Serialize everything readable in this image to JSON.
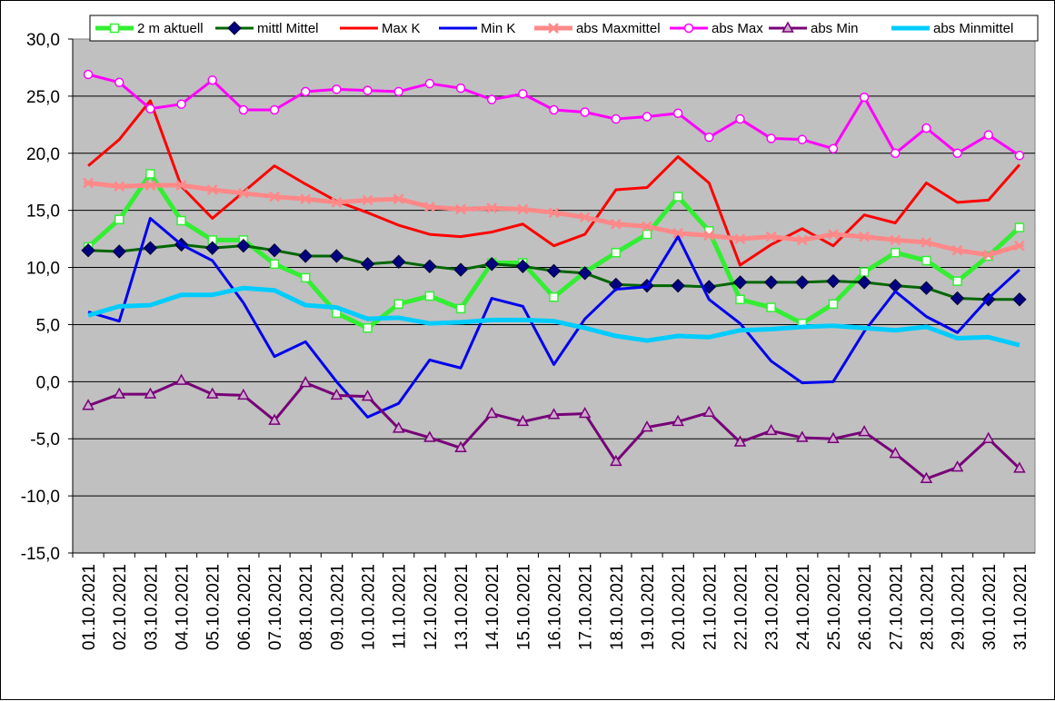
{
  "chart_data": {
    "type": "line",
    "title": "",
    "xlabel": "",
    "ylabel": "",
    "ylim": [
      -15,
      30
    ],
    "y_ticks": [
      "30,0",
      "25,0",
      "20,0",
      "15,0",
      "10,0",
      "5,0",
      "0,0",
      "-5,0",
      "-10,0",
      "-15,0"
    ],
    "grid": true,
    "legend_position": "top",
    "categories": [
      "01.10.2021",
      "02.10.2021",
      "03.10.2021",
      "04.10.2021",
      "05.10.2021",
      "06.10.2021",
      "07.10.2021",
      "08.10.2021",
      "09.10.2021",
      "10.10.2021",
      "11.10.2021",
      "12.10.2021",
      "13.10.2021",
      "14.10.2021",
      "15.10.2021",
      "16.10.2021",
      "17.10.2021",
      "18.10.2021",
      "19.10.2021",
      "20.10.2021",
      "21.10.2021",
      "22.10.2021",
      "23.10.2021",
      "24.10.2021",
      "25.10.2021",
      "26.10.2021",
      "27.10.2021",
      "28.10.2021",
      "29.10.2021",
      "30.10.2021",
      "31.10.2021"
    ],
    "series": [
      {
        "name": "2 m aktuell",
        "color": "#33ee33",
        "marker": "square",
        "width": 5,
        "values": [
          11.8,
          14.2,
          18.2,
          14.1,
          12.4,
          12.4,
          10.3,
          9.1,
          6.0,
          4.7,
          6.8,
          7.5,
          6.4,
          10.4,
          10.4,
          7.4,
          9.6,
          11.3,
          12.9,
          16.2,
          13.2,
          7.2,
          6.5,
          5.1,
          6.8,
          9.6,
          11.3,
          10.6,
          8.8,
          11.0,
          13.5
        ]
      },
      {
        "name": "mittl Mittel",
        "color": "#006600",
        "marker": "diamond",
        "width": 3,
        "values": [
          11.5,
          11.4,
          11.7,
          12.0,
          11.7,
          11.9,
          11.5,
          11.0,
          11.0,
          10.3,
          10.5,
          10.1,
          9.8,
          10.3,
          10.1,
          9.7,
          9.5,
          8.5,
          8.4,
          8.4,
          8.3,
          8.7,
          8.7,
          8.7,
          8.8,
          8.7,
          8.4,
          8.2,
          7.3,
          7.2,
          7.2
        ]
      },
      {
        "name": "Max K",
        "color": "#ff0000",
        "marker": "none",
        "width": 3,
        "values": [
          18.9,
          21.2,
          24.6,
          17.1,
          14.3,
          16.6,
          18.9,
          17.3,
          15.8,
          14.8,
          13.7,
          12.9,
          12.7,
          13.1,
          13.8,
          11.9,
          12.9,
          16.8,
          17.0,
          19.7,
          17.4,
          10.2,
          12.0,
          13.4,
          11.9,
          14.6,
          13.9,
          17.4,
          15.7,
          15.9,
          19.0
        ]
      },
      {
        "name": "Min K",
        "color": "#0000ee",
        "marker": "none",
        "width": 3,
        "values": [
          6.1,
          5.3,
          14.3,
          12.0,
          10.6,
          6.9,
          2.2,
          3.5,
          0.0,
          -3.1,
          -1.9,
          1.9,
          1.2,
          7.3,
          6.6,
          1.5,
          5.5,
          8.1,
          8.3,
          12.7,
          7.2,
          5.1,
          1.8,
          -0.1,
          0.0,
          4.4,
          7.9,
          5.7,
          4.3,
          7.3,
          9.8
        ]
      },
      {
        "name": "abs Maxmittel",
        "color": "#ff8888",
        "marker": "star",
        "width": 5,
        "values": [
          17.4,
          17.1,
          17.2,
          17.2,
          16.8,
          16.5,
          16.2,
          16.0,
          15.7,
          15.9,
          16.0,
          15.3,
          15.1,
          15.2,
          15.1,
          14.8,
          14.4,
          13.8,
          13.6,
          13.0,
          12.8,
          12.5,
          12.7,
          12.4,
          12.9,
          12.7,
          12.4,
          12.2,
          11.5,
          11.1,
          11.9
        ]
      },
      {
        "name": "abs Max",
        "color": "#ff00ff",
        "marker": "circle",
        "width": 3,
        "values": [
          26.9,
          26.2,
          23.9,
          24.3,
          26.4,
          23.8,
          23.8,
          25.4,
          25.6,
          25.5,
          25.4,
          26.1,
          25.7,
          24.7,
          25.2,
          23.8,
          23.6,
          23.0,
          23.2,
          23.5,
          21.4,
          23.0,
          21.3,
          21.2,
          20.4,
          24.9,
          20.0,
          22.2,
          20.0,
          21.6,
          19.8
        ]
      },
      {
        "name": "abs Min",
        "color": "#770077",
        "marker": "triangle",
        "width": 3,
        "values": [
          -2.1,
          -1.1,
          -1.1,
          0.1,
          -1.1,
          -1.2,
          -3.4,
          -0.1,
          -1.2,
          -1.3,
          -4.1,
          -4.9,
          -5.8,
          -2.8,
          -3.5,
          -2.9,
          -2.8,
          -7.0,
          -4.0,
          -3.5,
          -2.7,
          -5.3,
          -4.3,
          -4.9,
          -5.0,
          -4.4,
          -6.3,
          -8.5,
          -7.5,
          -5.0,
          -7.6
        ]
      },
      {
        "name": "abs Minmittel",
        "color": "#00ccff",
        "marker": "none",
        "width": 5,
        "values": [
          5.8,
          6.6,
          6.7,
          7.6,
          7.6,
          8.2,
          8.0,
          6.7,
          6.5,
          5.5,
          5.6,
          5.1,
          5.2,
          5.4,
          5.4,
          5.3,
          4.7,
          4.0,
          3.6,
          4.0,
          3.9,
          4.5,
          4.6,
          4.8,
          4.9,
          4.7,
          4.5,
          4.8,
          3.8,
          3.9,
          3.2
        ]
      }
    ]
  }
}
